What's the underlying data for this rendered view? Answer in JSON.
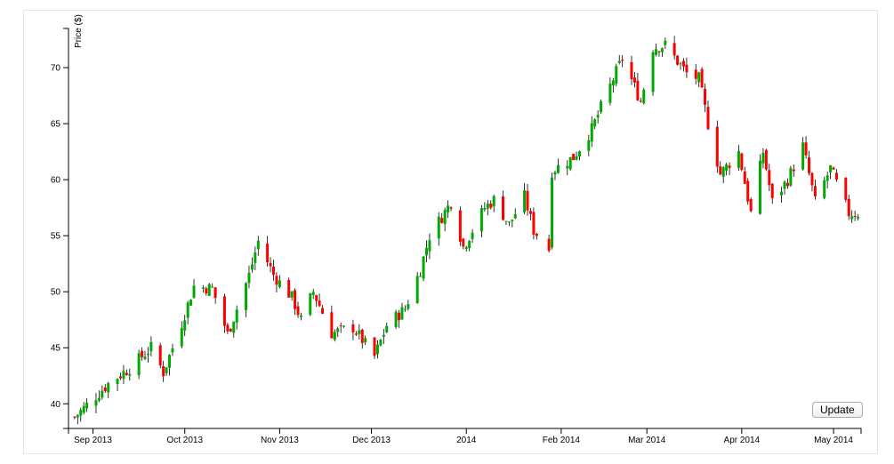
{
  "chart_data": {
    "type": "candlestick",
    "title": "",
    "ylabel": "Price ($)",
    "xlabel": "",
    "ylim": [
      37.8,
      73.5
    ],
    "yticks": [
      40,
      45,
      50,
      55,
      60,
      65,
      70
    ],
    "xlim": [
      "2013-08-24",
      "2014-05-10"
    ],
    "xticks": [
      {
        "date": "2013-09-01",
        "label": "Sep 2013"
      },
      {
        "date": "2013-10-01",
        "label": "Oct 2013"
      },
      {
        "date": "2013-11-01",
        "label": "Nov 2013"
      },
      {
        "date": "2013-12-01",
        "label": "Dec 2013"
      },
      {
        "date": "2014-01-01",
        "label": "2014"
      },
      {
        "date": "2014-02-01",
        "label": "Feb 2014"
      },
      {
        "date": "2014-03-01",
        "label": "Mar 2014"
      },
      {
        "date": "2014-04-01",
        "label": "Apr 2014"
      },
      {
        "date": "2014-05-01",
        "label": "May 2014"
      }
    ],
    "colors": {
      "up": "#00aa00",
      "down": "#ff0000",
      "axis": "#000000"
    },
    "anchor_closes": [
      [
        "2013-08-26",
        38.8
      ],
      [
        "2013-09-06",
        41.8
      ],
      [
        "2013-09-13",
        43.2
      ],
      [
        "2013-09-20",
        45.0
      ],
      [
        "2013-09-24",
        42.8
      ],
      [
        "2013-09-30",
        47.2
      ],
      [
        "2013-10-04",
        50.5
      ],
      [
        "2013-10-10",
        50.3
      ],
      [
        "2013-10-15",
        46.2
      ],
      [
        "2013-10-22",
        51.5
      ],
      [
        "2013-10-25",
        54.5
      ],
      [
        "2013-10-30",
        51.5
      ],
      [
        "2013-11-05",
        49.5
      ],
      [
        "2013-11-08",
        47.5
      ],
      [
        "2013-11-12",
        50.0
      ],
      [
        "2013-11-18",
        46.3
      ],
      [
        "2013-11-25",
        46.8
      ],
      [
        "2013-12-02",
        44.2
      ],
      [
        "2013-12-06",
        47.0
      ],
      [
        "2013-12-12",
        48.5
      ],
      [
        "2013-12-17",
        52.0
      ],
      [
        "2013-12-20",
        55.0
      ],
      [
        "2013-12-27",
        58.0
      ],
      [
        "2013-12-31",
        54.0
      ],
      [
        "2014-01-07",
        57.5
      ],
      [
        "2014-01-10",
        58.2
      ],
      [
        "2014-01-15",
        56.0
      ],
      [
        "2014-01-20",
        58.5
      ],
      [
        "2014-01-23",
        55.5
      ],
      [
        "2014-01-28",
        53.8
      ],
      [
        "2014-01-29",
        60.8
      ],
      [
        "2014-02-05",
        62.0
      ],
      [
        "2014-02-11",
        64.5
      ],
      [
        "2014-02-18",
        69.0
      ],
      [
        "2014-02-21",
        70.8
      ],
      [
        "2014-02-27",
        67.0
      ],
      [
        "2014-03-03",
        71.8
      ],
      [
        "2014-03-07",
        72.0
      ],
      [
        "2014-03-14",
        69.5
      ],
      [
        "2014-03-18",
        69.0
      ],
      [
        "2014-03-21",
        65.0
      ],
      [
        "2014-03-25",
        60.5
      ],
      [
        "2014-03-31",
        62.5
      ],
      [
        "2014-04-04",
        57.0
      ],
      [
        "2014-04-08",
        62.5
      ],
      [
        "2014-04-11",
        58.0
      ],
      [
        "2014-04-16",
        60.0
      ],
      [
        "2014-04-21",
        63.0
      ],
      [
        "2014-04-25",
        58.0
      ],
      [
        "2014-04-30",
        61.0
      ],
      [
        "2014-05-06",
        57.0
      ],
      [
        "2014-05-09",
        57.0
      ]
    ],
    "data_gap": [
      "2014-01-25",
      "2014-01-27"
    ]
  },
  "controls": {
    "update_label": "Update"
  }
}
